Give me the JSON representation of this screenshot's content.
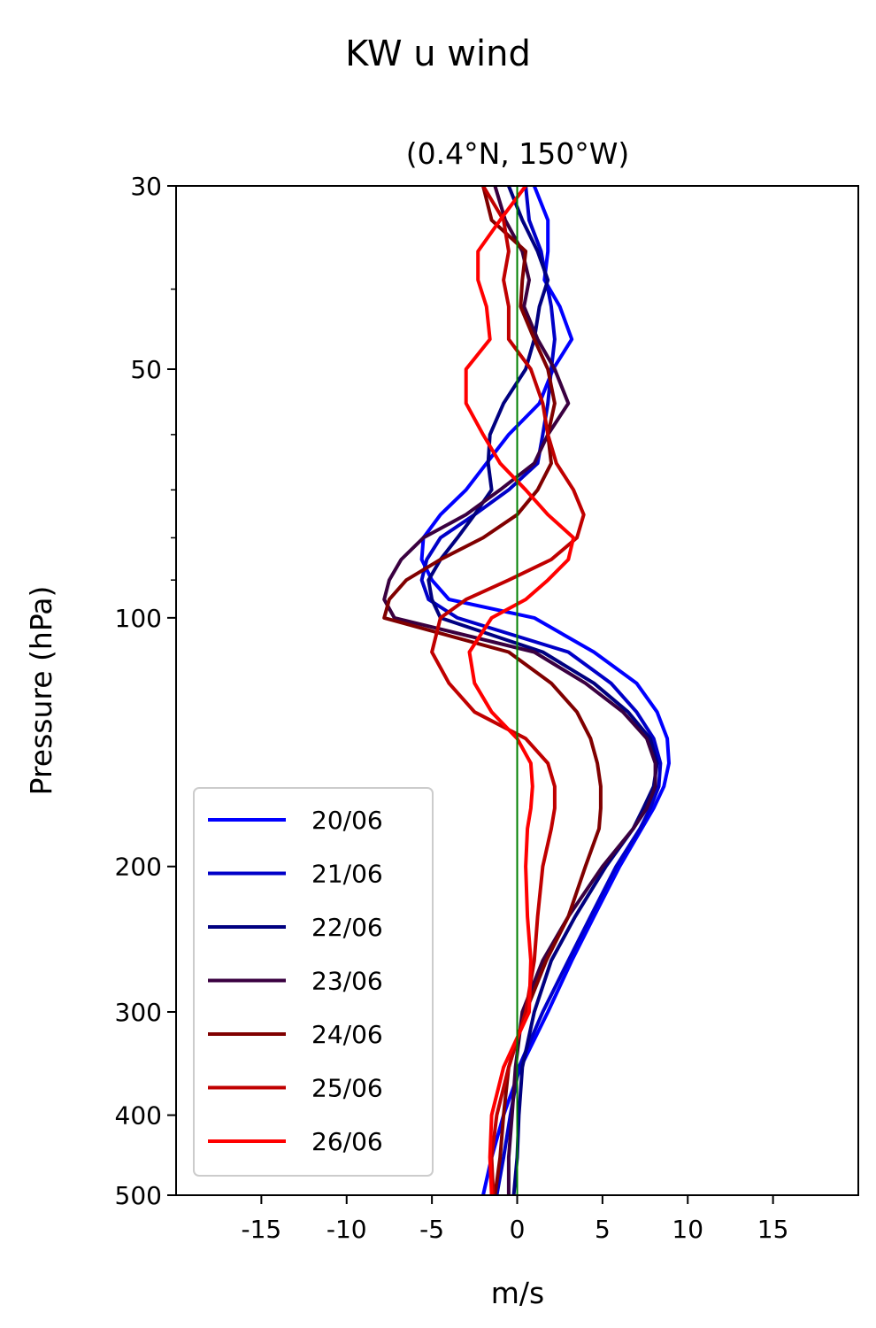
{
  "chart_data": {
    "type": "line",
    "title": "KW u wind",
    "subtitle": "(0.4°N, 150°W)",
    "xlabel": "m/s",
    "ylabel": "Pressure (hPa)",
    "xlim": [
      -20,
      20
    ],
    "ylim": [
      500,
      30
    ],
    "y_scale": "log",
    "x_ticks": [
      -15,
      -10,
      -5,
      0,
      5,
      10,
      15
    ],
    "x_tick_labels": [
      "-15",
      "-10",
      "-5",
      "0",
      "5",
      "10",
      "15"
    ],
    "y_ticks": [
      30,
      50,
      100,
      200,
      300,
      400,
      500
    ],
    "y_tick_labels": [
      "30",
      "50",
      "100",
      "200",
      "300",
      "400",
      "500"
    ],
    "y_minor_ticks": [
      40,
      60,
      70,
      80,
      90
    ],
    "reference_line": {
      "x": 0,
      "color": "#008000"
    },
    "grid": false,
    "legend_position": "lower-left",
    "pressure": [
      30,
      33,
      36,
      39,
      42,
      46,
      50,
      55,
      60,
      65,
      70,
      75,
      80,
      85,
      90,
      95,
      100,
      110,
      120,
      130,
      140,
      150,
      160,
      170,
      180,
      200,
      230,
      260,
      300,
      350,
      400,
      450,
      500
    ],
    "series": [
      {
        "name": "20/06",
        "color": "#0000ff",
        "values": [
          1.0,
          1.8,
          1.8,
          1.6,
          2.5,
          3.2,
          2.1,
          1.3,
          -0.5,
          -1.8,
          -3.0,
          -4.5,
          -5.5,
          -5.6,
          -5.0,
          -4.0,
          1.0,
          4.5,
          7.0,
          8.2,
          8.8,
          8.9,
          8.6,
          8.0,
          7.3,
          6.0,
          4.5,
          3.2,
          1.8,
          0.2,
          -0.8,
          -1.5,
          -2.0
        ]
      },
      {
        "name": "21/06",
        "color": "#0000c8",
        "values": [
          0.5,
          0.7,
          1.4,
          1.7,
          2.0,
          2.2,
          2.0,
          1.8,
          1.5,
          1.2,
          -0.5,
          -2.5,
          -4.5,
          -5.3,
          -5.6,
          -5.2,
          -3.5,
          3.0,
          5.5,
          7.0,
          8.0,
          8.4,
          8.3,
          7.8,
          7.2,
          5.8,
          4.3,
          3.0,
          1.5,
          0.1,
          -0.4,
          -0.8,
          -1.2
        ]
      },
      {
        "name": "22/06",
        "color": "#000080",
        "values": [
          -0.5,
          0.3,
          1.2,
          1.8,
          1.3,
          1.0,
          0.5,
          -0.8,
          -1.6,
          -1.7,
          -1.5,
          -2.5,
          -3.5,
          -4.5,
          -5.2,
          -5.0,
          -4.5,
          1.5,
          4.5,
          6.5,
          7.8,
          8.2,
          8.0,
          7.4,
          6.8,
          5.2,
          3.4,
          2.0,
          1.0,
          0.3,
          0.1,
          0.0,
          -0.2
        ]
      },
      {
        "name": "23/06",
        "color": "#3a0040",
        "values": [
          -1.3,
          -0.7,
          0.3,
          0.7,
          0.4,
          1.2,
          2.2,
          3.0,
          1.8,
          1.0,
          -1.0,
          -3.0,
          -5.5,
          -6.8,
          -7.5,
          -7.8,
          -7.2,
          1.0,
          4.0,
          6.2,
          7.6,
          8.1,
          8.1,
          7.6,
          6.8,
          5.0,
          3.0,
          1.5,
          0.3,
          -0.1,
          -0.3,
          -0.5,
          -0.5
        ]
      },
      {
        "name": "24/06",
        "color": "#800000",
        "values": [
          -2.0,
          -1.5,
          0.5,
          0.3,
          0.2,
          1.0,
          1.8,
          2.2,
          1.8,
          2.0,
          1.2,
          0.0,
          -2.0,
          -4.5,
          -6.5,
          -7.5,
          -7.8,
          -0.5,
          2.0,
          3.5,
          4.3,
          4.7,
          4.9,
          4.9,
          4.8,
          4.0,
          3.0,
          1.7,
          0.5,
          -0.5,
          -0.8,
          -1.0,
          -1.3
        ]
      },
      {
        "name": "25/06",
        "color": "#c00000",
        "values": [
          -2.0,
          -0.8,
          -0.5,
          -0.8,
          -0.5,
          -0.5,
          0.8,
          1.5,
          1.8,
          2.3,
          3.3,
          3.9,
          3.5,
          2.0,
          -0.5,
          -3.0,
          -4.5,
          -5.0,
          -4.0,
          -2.5,
          0.5,
          1.8,
          2.2,
          2.2,
          2.0,
          1.5,
          1.2,
          1.0,
          0.5,
          -0.5,
          -1.2,
          -1.5,
          -1.4
        ]
      },
      {
        "name": "26/06",
        "color": "#ff0000",
        "values": [
          0.5,
          -1.0,
          -2.3,
          -2.3,
          -1.8,
          -1.6,
          -3.0,
          -3.0,
          -2.0,
          -1.0,
          0.5,
          1.8,
          3.3,
          3.0,
          1.8,
          0.5,
          -1.5,
          -2.8,
          -2.5,
          -1.5,
          0.0,
          0.8,
          0.9,
          0.8,
          0.6,
          0.5,
          0.6,
          0.8,
          0.7,
          -0.8,
          -1.5,
          -1.6,
          -1.5
        ]
      }
    ]
  }
}
